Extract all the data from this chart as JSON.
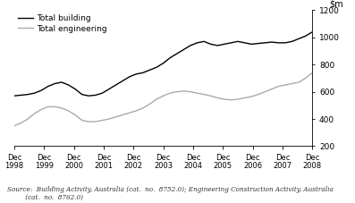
{
  "title": "",
  "ylim": [
    200,
    1200
  ],
  "yticks": [
    200,
    400,
    600,
    800,
    1000,
    1200
  ],
  "x_labels": [
    "Dec\n1998",
    "Dec\n1999",
    "Dec\n2000",
    "Dec\n2001",
    "Dec\n2002",
    "Dec\n2003",
    "Dec\n2004",
    "Dec\n2005",
    "Dec\n2006",
    "Dec\n2007",
    "Dec\n2008"
  ],
  "x_positions": [
    0,
    4,
    8,
    12,
    16,
    20,
    24,
    28,
    32,
    36,
    40
  ],
  "total_building": [
    570,
    575,
    580,
    590,
    610,
    640,
    660,
    670,
    650,
    620,
    580,
    570,
    575,
    590,
    620,
    650,
    680,
    710,
    730,
    740,
    760,
    780,
    810,
    850,
    880,
    910,
    940,
    960,
    970,
    950,
    940,
    950,
    960,
    970,
    960,
    950,
    955,
    960,
    965,
    960,
    960,
    970,
    990,
    1010,
    1040
  ],
  "total_engineering": [
    350,
    370,
    400,
    440,
    470,
    490,
    490,
    480,
    460,
    430,
    390,
    380,
    380,
    390,
    400,
    415,
    430,
    445,
    460,
    480,
    510,
    545,
    570,
    590,
    600,
    605,
    600,
    590,
    580,
    570,
    555,
    545,
    540,
    545,
    555,
    565,
    580,
    600,
    620,
    640,
    650,
    660,
    670,
    700,
    740
  ],
  "building_color": "#000000",
  "engineering_color": "#aaaaaa",
  "legend_building": "Total building",
  "legend_engineering": "Total engineering",
  "source_text": "Source:  Building Activity, Australia (cat.  no.  8752.0); Engineering Construction Activity, Australia\n         (cat.  no.  8762.0)",
  "background_color": "#ffffff",
  "num_points": 45
}
